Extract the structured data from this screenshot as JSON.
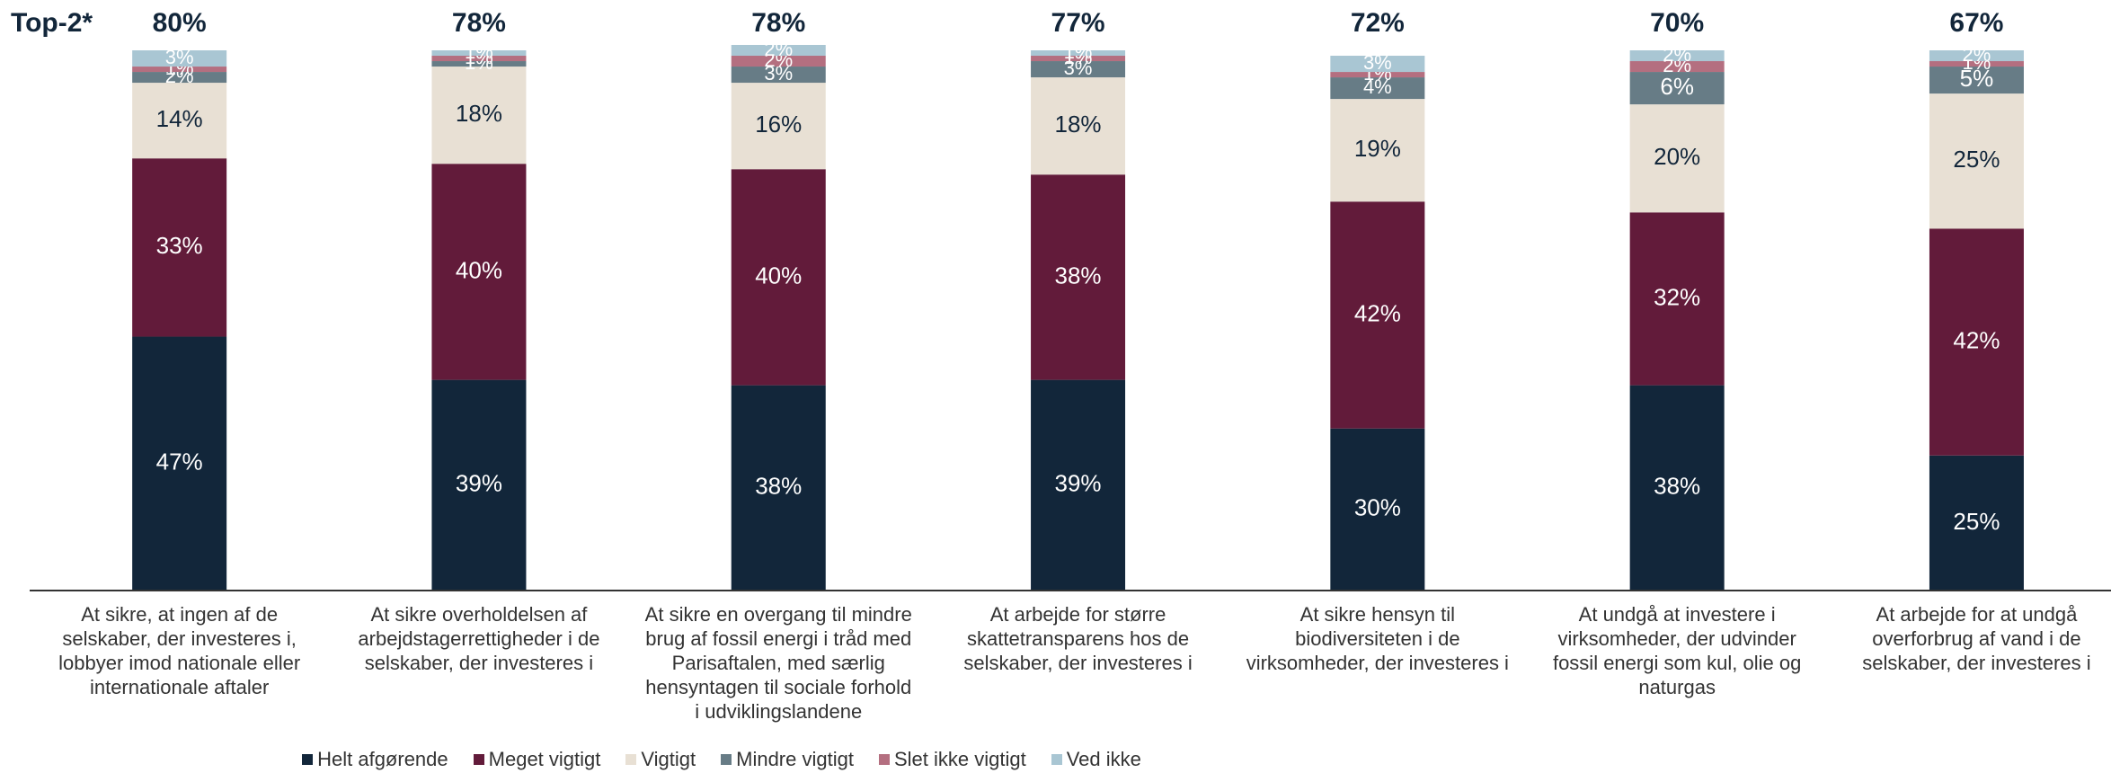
{
  "chart_data": {
    "type": "stacked_bar",
    "categories": [
      "At sikre, at ingen af de selskaber, der investeres i, lobbyer imod nationale eller internationale aftaler",
      "At sikre overholdelsen af arbejdstagerrettigheder i de selskaber, der investeres i",
      "At sikre en overgang til mindre brug af fossil energi i tråd med Parisaftalen, med særlig hensyntagen til sociale forhold i udviklingslandene",
      "At arbejde for større skattetransparens hos de selskaber, der investeres i",
      "At sikre hensyn til biodiversiteten i de virksomheder, der investeres i",
      "At undgå at investere i virksomheder, der udvinder fossil energi som kul, olie og naturgas",
      "At arbejde for at undgå overforbrug af vand i de selskaber, der investeres i"
    ],
    "series": [
      {
        "name": "Helt afgørende",
        "color": "#12263a",
        "label_color": "#ffffff",
        "values": [
          47,
          39,
          38,
          39,
          30,
          38,
          25
        ],
        "value_labels": [
          "47%",
          "39%",
          "38%",
          "39%",
          "30%",
          "38%",
          "25%"
        ]
      },
      {
        "name": "Meget vigtigt",
        "color": "#621b3a",
        "label_color": "#ffffff",
        "values": [
          33,
          40,
          40,
          38,
          42,
          32,
          42
        ],
        "value_labels": [
          "33%",
          "40%",
          "40%",
          "38%",
          "42%",
          "32%",
          "42%"
        ]
      },
      {
        "name": "Vigtigt",
        "color": "#e8e0d4",
        "label_color": "#12263a",
        "values": [
          14,
          18,
          16,
          18,
          19,
          20,
          25
        ],
        "value_labels": [
          "14%",
          "18%",
          "16%",
          "18%",
          "19%",
          "20%",
          "25%"
        ]
      },
      {
        "name": "Mindre vigtigt",
        "color": "#677c86",
        "label_color": "#ffffff",
        "values": [
          2,
          1,
          3,
          3,
          4,
          6,
          5
        ],
        "value_labels": [
          "2%",
          "1%",
          "3%",
          "3%",
          "4%",
          "6%",
          "5%"
        ]
      },
      {
        "name": "Slet ikke vigtigt",
        "color": "#b46f80",
        "label_color": "#ffffff",
        "values": [
          1,
          1,
          2,
          1,
          1,
          2,
          1
        ],
        "value_labels": [
          "1%",
          "1%",
          "2%",
          "1%",
          "1%",
          "2%",
          "1%"
        ]
      },
      {
        "name": "Ved ikke",
        "color": "#a9c6d3",
        "label_color": "#ffffff",
        "values": [
          3,
          1,
          2,
          1,
          3,
          2,
          2
        ],
        "value_labels": [
          "3%",
          "1%",
          "2%",
          "1%",
          "3%",
          "2%",
          "2%"
        ]
      }
    ],
    "top2": {
      "label": "Top-2*",
      "values": [
        80,
        78,
        78,
        77,
        72,
        70,
        67
      ],
      "value_labels": [
        "80%",
        "78%",
        "78%",
        "77%",
        "72%",
        "70%",
        "67%"
      ]
    },
    "ylim": [
      0,
      100
    ]
  }
}
